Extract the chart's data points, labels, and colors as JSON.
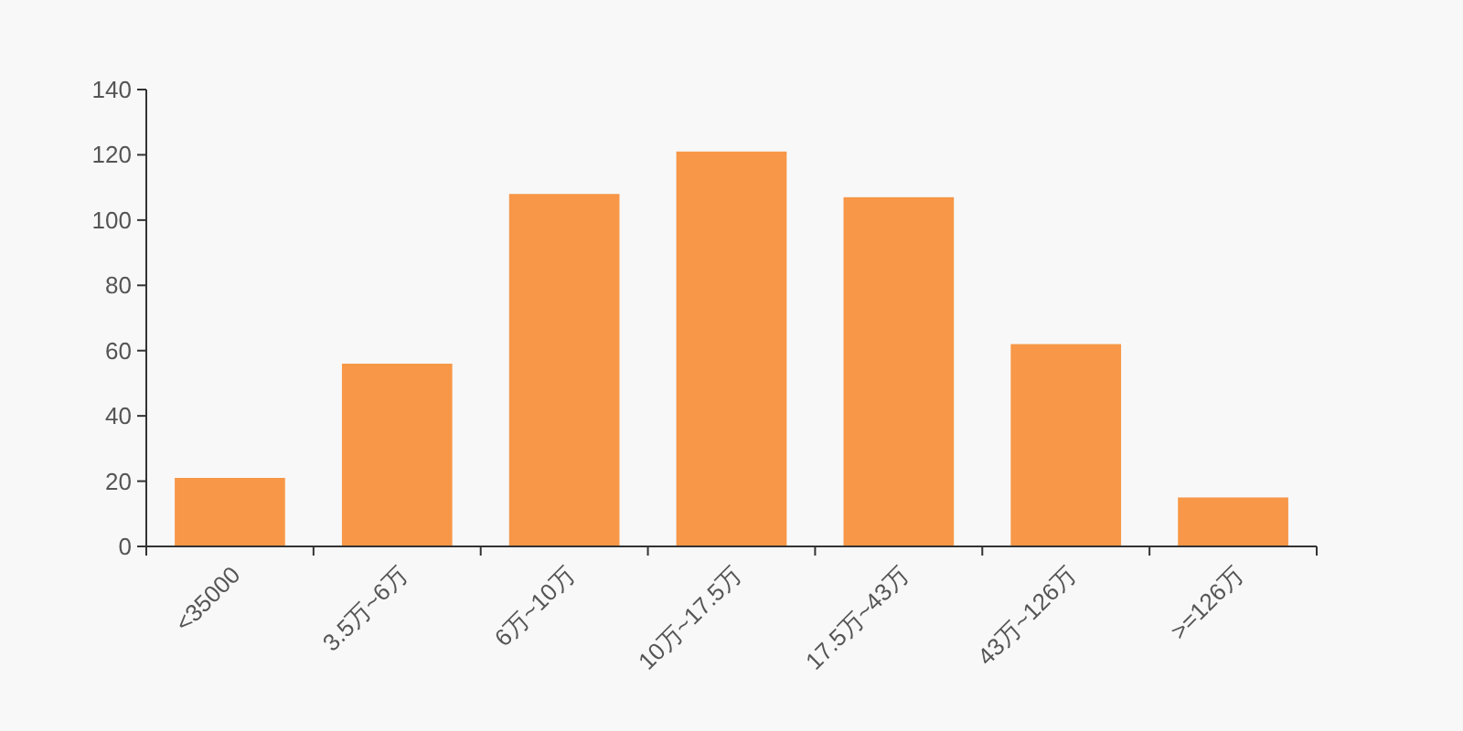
{
  "chart_data": {
    "type": "bar",
    "categories": [
      "<35000",
      "3.5万~6万",
      "6万~10万",
      "10万~17.5万",
      "17.5万~43万",
      "43万~126万",
      ">=126万"
    ],
    "values": [
      21,
      56,
      108,
      121,
      107,
      62,
      15
    ],
    "color": "#f79747",
    "ylim": [
      0,
      140
    ],
    "yticks": [
      0,
      20,
      40,
      60,
      80,
      100,
      120,
      140
    ],
    "grid": false
  }
}
